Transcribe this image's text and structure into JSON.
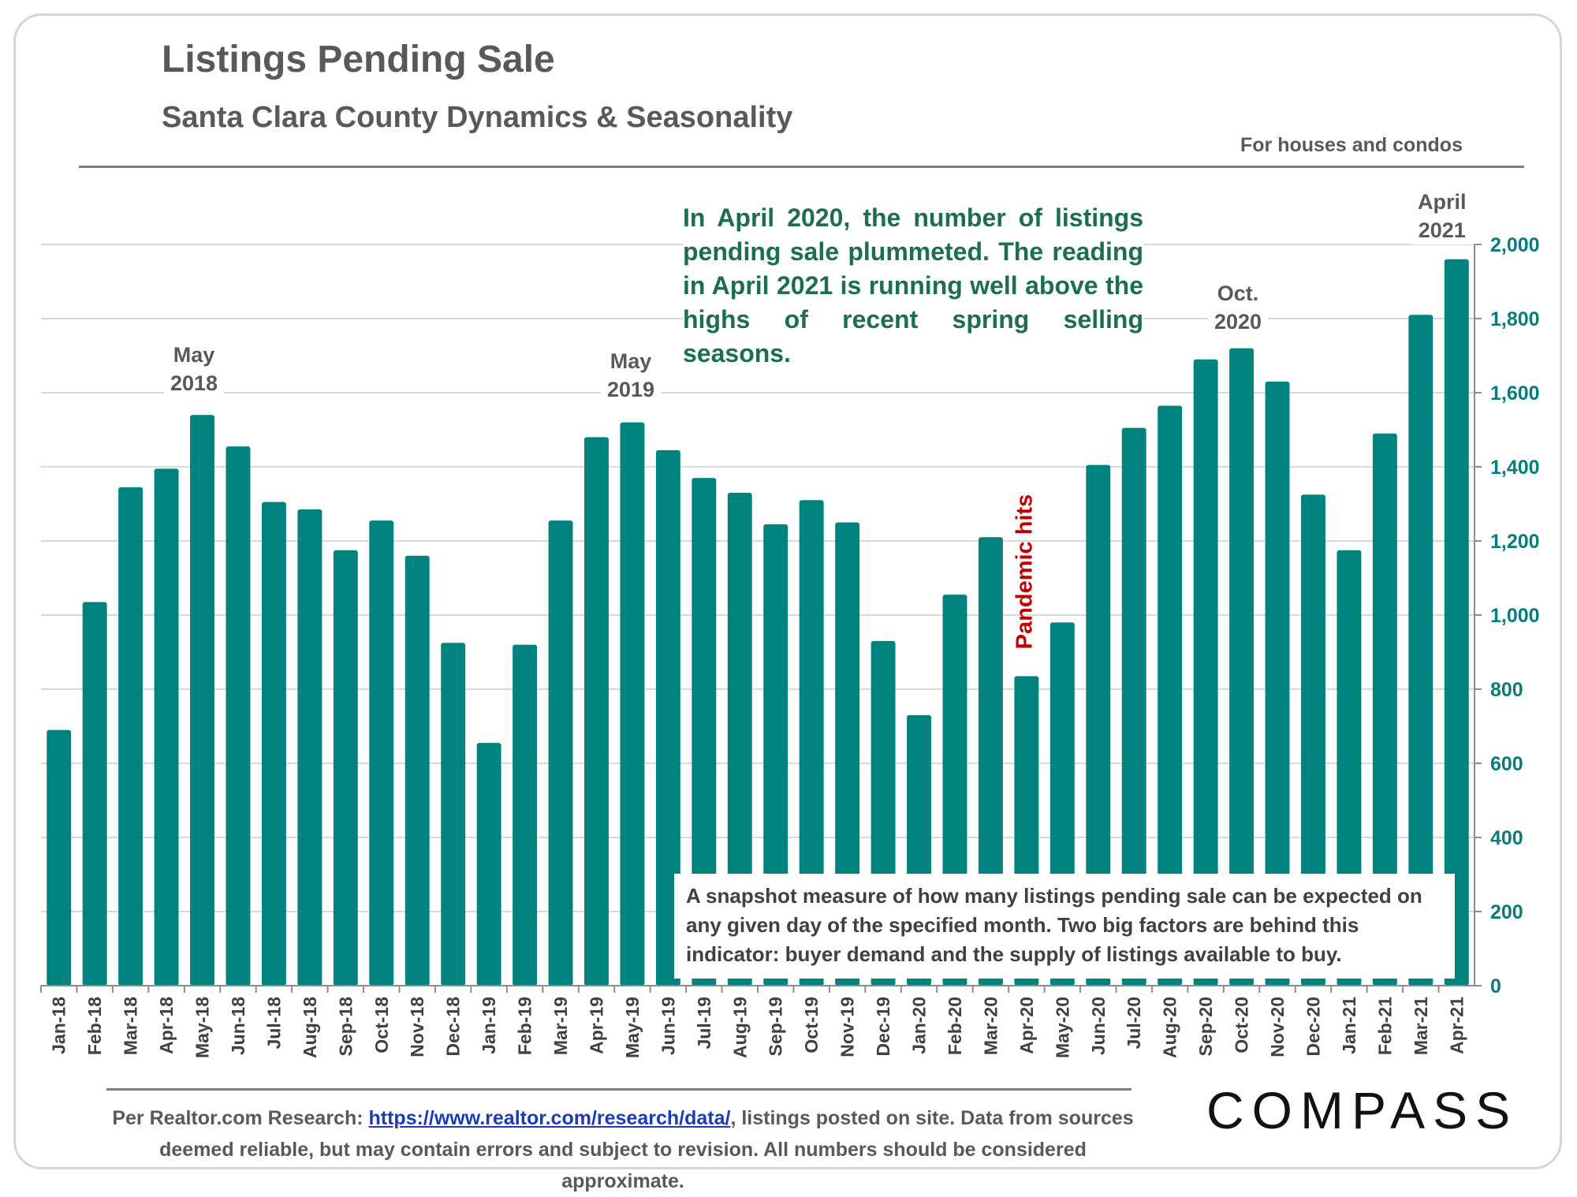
{
  "header": {
    "title": "Listings Pending Sale",
    "subtitle": "Santa Clara County Dynamics & Seasonality",
    "note": "For houses and condos"
  },
  "annotations": {
    "callout": "In April 2020, the number of listings pending sale plummeted. The reading in April 2021 is running well above the highs of recent spring selling seasons.",
    "snapshot": "A snapshot measure of how many listings pending sale can be expected on any given day of the specified month. Two big factors are behind this indicator: buyer demand and the supply of listings available to buy.",
    "may2018_line1": "May",
    "may2018_line2": "2018",
    "may2019_line1": "May",
    "may2019_line2": "2019",
    "oct2020_line1": "Oct.",
    "oct2020_line2": "2020",
    "apr2021_line1": "April",
    "apr2021_line2": "2021",
    "pandemic": "Pandemic hits"
  },
  "footer": {
    "source_prefix": "Per Realtor.com Research: ",
    "source_link": "https://www.realtor.com/research/data/",
    "source_rest": ", listings posted on site. Data from sources deemed reliable, but may contain errors and subject to revision. All numbers should be considered approximate.",
    "logo": "COMPASS"
  },
  "colors": {
    "bar": "#00827f",
    "gridline": "#d9d9d9",
    "axis_text": "#0a7b7b",
    "callout_text": "#1d6d53",
    "pandemic_text": "#c00000"
  },
  "chart_data": {
    "type": "bar",
    "categories": [
      "Jan-18",
      "Feb-18",
      "Mar-18",
      "Apr-18",
      "May-18",
      "Jun-18",
      "Jul-18",
      "Aug-18",
      "Sep-18",
      "Oct-18",
      "Nov-18",
      "Dec-18",
      "Jan-19",
      "Feb-19",
      "Mar-19",
      "Apr-19",
      "May-19",
      "Jun-19",
      "Jul-19",
      "Aug-19",
      "Sep-19",
      "Oct-19",
      "Nov-19",
      "Dec-19",
      "Jan-20",
      "Feb-20",
      "Mar-20",
      "Apr-20",
      "May-20",
      "Jun-20",
      "Jul-20",
      "Aug-20",
      "Sep-20",
      "Oct-20",
      "Nov-20",
      "Dec-20",
      "Jan-21",
      "Feb-21",
      "Mar-21",
      "Apr-21"
    ],
    "values": [
      690,
      1035,
      1345,
      1395,
      1540,
      1455,
      1305,
      1285,
      1175,
      1255,
      1160,
      925,
      655,
      920,
      1255,
      1480,
      1520,
      1445,
      1370,
      1330,
      1245,
      1310,
      1250,
      930,
      730,
      1055,
      1210,
      835,
      980,
      1405,
      1505,
      1565,
      1690,
      1720,
      1630,
      1325,
      1175,
      1490,
      1810,
      1960
    ],
    "ylim": [
      0,
      2000
    ],
    "yticks": [
      0,
      200,
      400,
      600,
      800,
      1000,
      1200,
      1400,
      1600,
      1800,
      2000
    ],
    "ytick_labels": [
      "0",
      "200",
      "400",
      "600",
      "800",
      "1,000",
      "1,200",
      "1,400",
      "1,600",
      "1,800",
      "2,000"
    ],
    "y_axis_position": "right",
    "grid": true,
    "legend": "none"
  }
}
